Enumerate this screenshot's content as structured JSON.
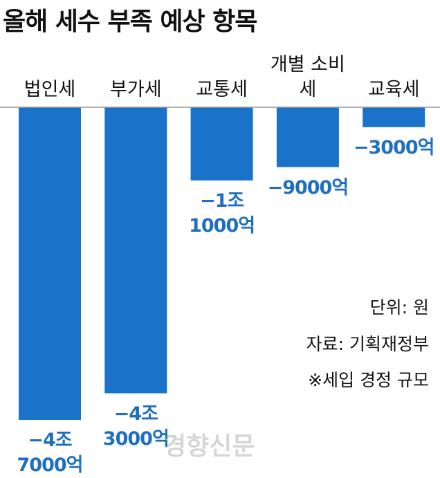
{
  "chart_data": {
    "type": "bar",
    "title": "올해 세수 부족 예상 항목",
    "categories": [
      "법인세",
      "부가세",
      "교통세",
      "개별 소비세",
      "교육세"
    ],
    "values": [
      -47000,
      -43000,
      -11000,
      -9000,
      -3000
    ],
    "value_labels": [
      "−4조 7000억",
      "−4조 3000억",
      "−1조 1000억",
      "−9000억",
      "−3000억"
    ],
    "color": "#1a73c8",
    "ylim": [
      -47000,
      0
    ],
    "annotations": [
      "단위: 원",
      "자료: 기획재정부",
      "※세입 경정 규모"
    ],
    "watermark": "경향신문"
  }
}
